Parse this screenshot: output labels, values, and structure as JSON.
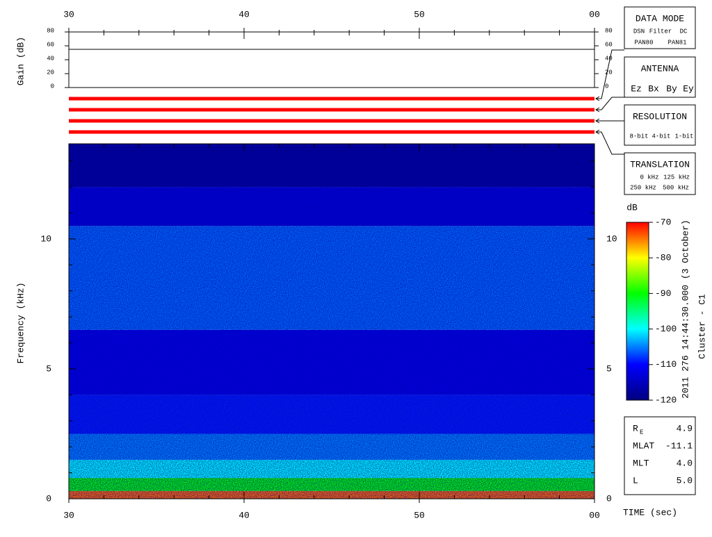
{
  "chart_data": {
    "type": "spectrogram",
    "xlim": [
      30,
      60
    ],
    "xticks": [
      30,
      40,
      50,
      {
        "value": 60,
        "label": "00"
      }
    ],
    "x_minor_ticks": [
      32,
      34,
      36,
      38,
      42,
      44,
      46,
      48,
      52,
      54,
      56,
      58
    ],
    "xlabel": "TIME (sec)",
    "gain": {
      "ylabel": "Gain (dB)",
      "ylim": [
        0,
        80
      ],
      "yticks": [
        0,
        20,
        40,
        60,
        80
      ],
      "value": 55
    },
    "ylabel": "Frequency (kHz)",
    "ylim": [
      0,
      13.66
    ],
    "yticks": [
      0,
      5,
      10
    ],
    "y_minor_ticks": [
      1,
      2,
      3,
      4,
      6,
      7,
      8,
      9,
      11,
      12,
      13
    ],
    "spectrum": {
      "freq_bins": [
        0,
        0.3,
        0.8,
        1.5,
        2.5,
        4,
        6.5,
        10.5,
        12,
        13.66
      ],
      "db": [
        -74,
        -90,
        -100,
        -105,
        -109,
        -112,
        -106,
        -113,
        -118
      ]
    },
    "colorbar": {
      "label": "dB",
      "lim": [
        -120,
        -70
      ],
      "ticks": [
        -70,
        -80,
        -90,
        -100,
        -110,
        -120
      ],
      "colormap": [
        "#00007f",
        "#0000ff",
        "#00ffff",
        "#00ff00",
        "#ffff00",
        "#ff0000"
      ]
    },
    "date_label": "2011 276 14:44:30.000 (3 October)",
    "spacecraft": "Cluster - C1"
  },
  "panels": {
    "data_mode": {
      "title": "DATA MODE",
      "items": [
        {
          "text": "DSN",
          "color": "#e00000"
        },
        {
          "text": "Filter",
          "color": "#00b000"
        },
        {
          "text": "DC",
          "color": "#0000e0"
        },
        {
          "text": "PAN80",
          "color": "#000000"
        },
        {
          "text": "PAN81",
          "color": "#00c0c0"
        }
      ]
    },
    "antenna": {
      "title": "ANTENNA",
      "items": [
        {
          "text": "Ez",
          "color": "#e00000"
        },
        {
          "text": "Bx",
          "color": "#00b000"
        },
        {
          "text": "By",
          "color": "#0000e0"
        },
        {
          "text": "Ey",
          "color": "#000000"
        }
      ]
    },
    "resolution": {
      "title": "RESOLUTION",
      "items": [
        {
          "text": "8-bit",
          "color": "#e00000"
        },
        {
          "text": "4-bit",
          "color": "#00b000"
        },
        {
          "text": "1-bit",
          "color": "#0000e0"
        }
      ]
    },
    "translation": {
      "title": "TRANSLATION",
      "items": [
        {
          "text": "0 kHz",
          "color": "#e00000"
        },
        {
          "text": "125 kHz",
          "color": "#00b000"
        },
        {
          "text": "250 kHz",
          "color": "#0000e0"
        },
        {
          "text": "500 kHz",
          "color": "#000000"
        }
      ]
    },
    "orbit": [
      {
        "label": "R",
        "sub": "E",
        "value": "4.9"
      },
      {
        "label": "MLAT",
        "value": "-11.1"
      },
      {
        "label": "MLT",
        "value": "4.0"
      },
      {
        "label": "L",
        "value": "5.0"
      }
    ]
  }
}
